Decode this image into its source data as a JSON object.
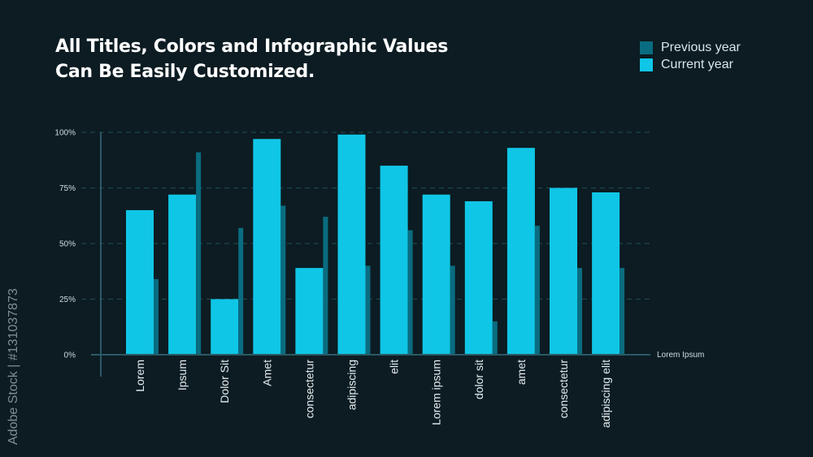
{
  "title": {
    "line1": "All Titles, Colors and Infographic Values",
    "line2": "Can Be Easily Customized."
  },
  "watermark": "Adobe Stock | #131037873",
  "colors": {
    "background": "#0c1c22",
    "previous": "#0a6c80",
    "current": "#10c6e6",
    "grid": "#20444d"
  },
  "chart_data": {
    "type": "bar",
    "categories": [
      "Lorem",
      "Ipsum",
      "Dolor Sit",
      "Amet",
      "consectetur",
      "adipiscing",
      "elit",
      "Lorem ipsum",
      "dolor sit",
      "amet",
      "consectetur",
      "adipiscing elit"
    ],
    "series": [
      {
        "name": "Previous year",
        "values": [
          34,
          91,
          57,
          67,
          62,
          40,
          56,
          40,
          15,
          58,
          39,
          39
        ]
      },
      {
        "name": "Current year",
        "values": [
          65,
          72,
          25,
          97,
          39,
          99,
          85,
          72,
          69,
          93,
          75,
          73
        ]
      }
    ],
    "yticks": [
      "0%",
      "25%",
      "50%",
      "75%",
      "100%"
    ],
    "ylim": [
      0,
      100
    ],
    "xlabel": "Lorem Ipsum",
    "ylabel": "",
    "grid": true,
    "legend": "top-right"
  }
}
